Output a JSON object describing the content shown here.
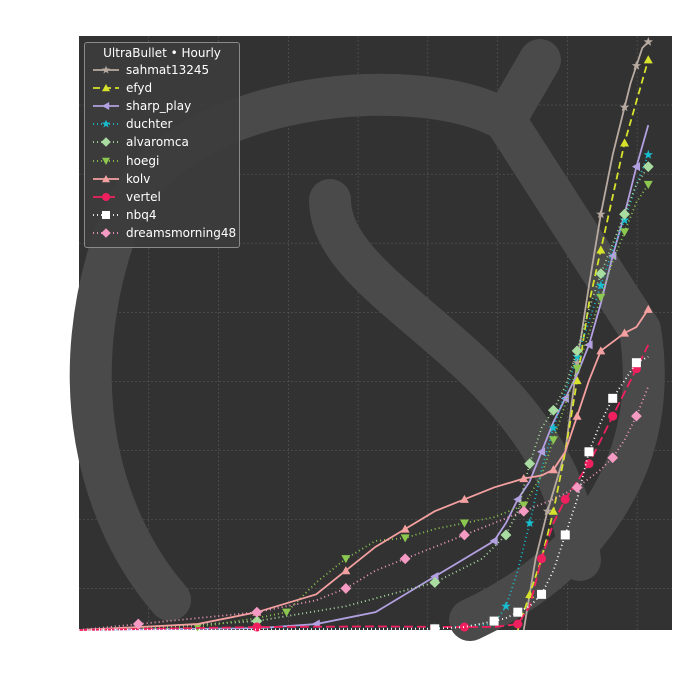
{
  "chart_data": {
    "type": "line",
    "title": "",
    "xlabel": "",
    "ylabel": "",
    "xlim": [
      0,
      100
    ],
    "ylim": [
      0,
      100
    ],
    "grid": true,
    "legend": {
      "title": "UltraBullet • Hourly",
      "placement": "top-left"
    },
    "series": [
      {
        "name": "sahmat13245",
        "color": "#b8aaa0",
        "dash": "",
        "marker": "star",
        "x": [
          75,
          77,
          79,
          82,
          84,
          86,
          88,
          90,
          92,
          93,
          94,
          95,
          96
        ],
        "y": [
          0,
          12,
          20,
          30,
          45,
          58,
          70,
          80,
          88,
          92,
          95,
          98,
          99
        ]
      },
      {
        "name": "efyd",
        "color": "#d6e22c",
        "dash": "7,4",
        "marker": "triangle",
        "x": [
          74,
          76,
          78,
          80,
          82,
          84,
          86,
          88,
          90,
          92,
          94,
          96
        ],
        "y": [
          0,
          6,
          12,
          20,
          30,
          42,
          55,
          64,
          73,
          82,
          89,
          96
        ]
      },
      {
        "name": "sharp_play",
        "color": "#b2a0e0",
        "dash": "",
        "marker": "triangle-left",
        "x": [
          0,
          30,
          40,
          50,
          60,
          65,
          70,
          72,
          74,
          76,
          78,
          80,
          82,
          84,
          86,
          88,
          90,
          92,
          94,
          96
        ],
        "y": [
          0,
          0.3,
          1,
          3,
          9,
          12,
          15,
          18,
          22,
          25,
          30,
          35,
          39,
          43,
          48,
          55,
          63,
          70,
          78,
          85
        ]
      },
      {
        "name": "duchter",
        "color": "#17becf",
        "dash": "1,3",
        "marker": "star",
        "x": [
          0,
          60,
          70,
          72,
          74,
          76,
          78,
          80,
          82,
          84,
          86,
          88,
          90,
          92,
          94,
          96
        ],
        "y": [
          0,
          0.3,
          1,
          4,
          10,
          18,
          27,
          34,
          40,
          46,
          52,
          58,
          64,
          69,
          75,
          80
        ]
      },
      {
        "name": "alvaromca",
        "color": "#a8dca0",
        "dash": "1,3",
        "marker": "diamond",
        "x": [
          0,
          15,
          30,
          45,
          60,
          68,
          72,
          74,
          76,
          78,
          80,
          82,
          84,
          86,
          88,
          90,
          92,
          94,
          96
        ],
        "y": [
          0,
          0.6,
          1.5,
          4,
          8,
          12,
          16,
          20,
          28,
          34,
          37,
          41,
          47,
          54,
          60,
          65,
          70,
          75,
          78
        ]
      },
      {
        "name": "hoegi",
        "color": "#8cc850",
        "dash": "1,3",
        "marker": "triangle-down",
        "x": [
          0,
          20,
          30,
          35,
          40,
          45,
          50,
          55,
          60,
          65,
          70,
          75,
          78,
          80,
          82,
          84,
          86,
          88,
          90,
          92,
          94,
          96
        ],
        "y": [
          0,
          0.5,
          2,
          3,
          8,
          12,
          15,
          15.5,
          17,
          18,
          19,
          21,
          26,
          32,
          38,
          44,
          50,
          56,
          62,
          67,
          72,
          75
        ]
      },
      {
        "name": "kolv",
        "color": "#f4a0a0",
        "dash": "",
        "marker": "triangle",
        "x": [
          0,
          20,
          30,
          40,
          45,
          50,
          55,
          60,
          65,
          70,
          75,
          78,
          80,
          82,
          84,
          86,
          88,
          90,
          92,
          94,
          96
        ],
        "y": [
          0,
          1,
          3,
          6,
          10,
          14,
          17,
          20,
          22,
          24,
          25.5,
          26,
          27,
          30,
          36,
          42,
          47,
          48.5,
          50,
          51,
          54
        ]
      },
      {
        "name": "vertel",
        "color": "#f0205e",
        "dash": "9,4",
        "marker": "circle",
        "x": [
          0,
          30,
          50,
          65,
          70,
          74,
          76,
          78,
          80,
          82,
          84,
          86,
          88,
          90,
          92,
          94,
          96
        ],
        "y": [
          0,
          0.5,
          0.6,
          0.5,
          0.5,
          1,
          4,
          12,
          18,
          22,
          25,
          28,
          32,
          36,
          40,
          44,
          48
        ]
      },
      {
        "name": "nbq4",
        "color": "#ffffff",
        "dash": "1,3",
        "marker": "square",
        "x": [
          0,
          40,
          60,
          65,
          70,
          72,
          74,
          76,
          78,
          80,
          82,
          84,
          86,
          88,
          90,
          92,
          94,
          96
        ],
        "y": [
          0,
          0.1,
          0.2,
          0.5,
          1.5,
          2,
          3,
          4,
          6,
          10,
          16,
          22,
          30,
          35,
          39,
          42,
          45,
          46
        ]
      },
      {
        "name": "dreamsmorning48",
        "color": "#f59ac2",
        "dash": "1,3",
        "marker": "diamond",
        "x": [
          0,
          10,
          20,
          30,
          40,
          45,
          50,
          55,
          60,
          65,
          70,
          75,
          80,
          84,
          88,
          90,
          92,
          94,
          96
        ],
        "y": [
          0,
          1,
          2,
          3,
          5,
          7,
          10,
          12,
          14,
          16,
          18,
          20,
          22,
          24,
          27,
          29,
          32,
          36,
          41
        ]
      }
    ]
  }
}
